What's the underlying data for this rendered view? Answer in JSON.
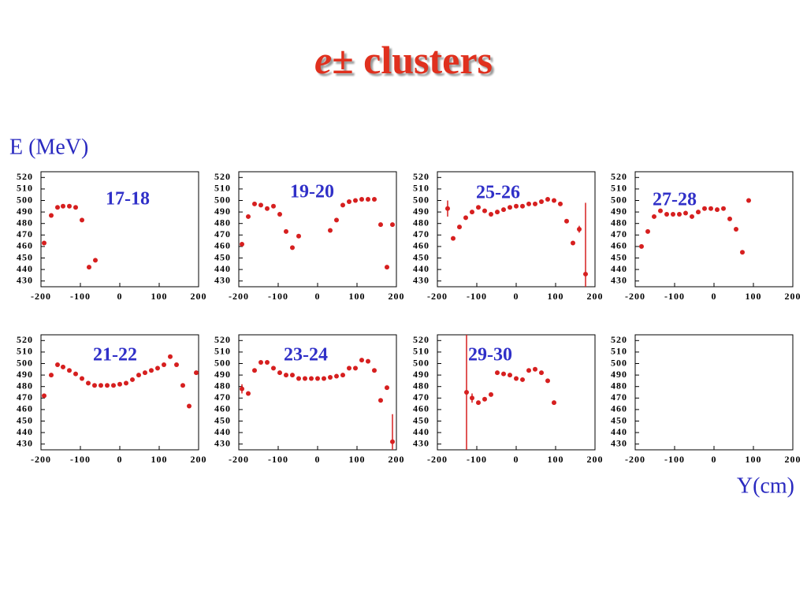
{
  "title": {
    "italic": "e",
    "rest": "± clusters"
  },
  "y_axis_label": "E (MeV)",
  "x_axis_label": "Y(cm)",
  "chart_data": [
    {
      "type": "scatter",
      "annotation": "17-18",
      "color": "#d61f1f",
      "x": [
        -192,
        -174,
        -158,
        -144,
        -128,
        -112,
        -96,
        -78,
        -62
      ],
      "values": [
        463,
        487,
        494,
        495,
        495,
        494,
        483,
        442,
        448
      ],
      "xlim": [
        -200,
        200
      ],
      "ylim": [
        425,
        525
      ],
      "xticks": [
        -200,
        -100,
        0,
        100,
        200
      ],
      "yticks": [
        430,
        440,
        450,
        460,
        470,
        480,
        490,
        500,
        510,
        520
      ]
    },
    {
      "type": "scatter",
      "annotation": "19-20",
      "color": "#d61f1f",
      "x": [
        -192,
        -176,
        -160,
        -144,
        -128,
        -112,
        -96,
        -80,
        -64,
        -48,
        32,
        48,
        64,
        80,
        96,
        112,
        128,
        144,
        160,
        176,
        190
      ],
      "values": [
        462,
        486,
        497,
        496,
        493,
        495,
        488,
        473,
        459,
        469,
        474,
        483,
        496,
        499,
        500,
        501,
        501,
        501,
        479,
        442,
        479
      ],
      "xlim": [
        -200,
        200
      ],
      "ylim": [
        425,
        525
      ],
      "xticks": [
        -200,
        -100,
        0,
        100,
        200
      ],
      "yticks": [
        430,
        440,
        450,
        460,
        470,
        480,
        490,
        500,
        510,
        520
      ]
    },
    {
      "type": "scatter",
      "annotation": "25-26",
      "color": "#d61f1f",
      "x": [
        -174,
        -160,
        -144,
        -128,
        -112,
        -96,
        -80,
        -64,
        -48,
        -32,
        -16,
        0,
        16,
        32,
        48,
        64,
        80,
        96,
        112,
        128,
        144,
        160,
        176
      ],
      "values": [
        493,
        467,
        477,
        485,
        490,
        494,
        491,
        488,
        490,
        492,
        494,
        495,
        495,
        497,
        497,
        499,
        501,
        500,
        497,
        482,
        463,
        475,
        436
      ],
      "yerr": [
        7,
        null,
        null,
        null,
        null,
        null,
        null,
        null,
        null,
        null,
        null,
        null,
        null,
        null,
        null,
        null,
        null,
        null,
        null,
        null,
        null,
        3,
        62
      ],
      "xlim": [
        -200,
        200
      ],
      "ylim": [
        425,
        525
      ],
      "xticks": [
        -200,
        -100,
        0,
        100,
        200
      ],
      "yticks": [
        430,
        440,
        450,
        460,
        470,
        480,
        490,
        500,
        510,
        520
      ]
    },
    {
      "type": "scatter",
      "annotation": "27-28",
      "color": "#d61f1f",
      "x": [
        -184,
        -168,
        -152,
        -136,
        -120,
        -104,
        -88,
        -72,
        -56,
        -40,
        -24,
        -8,
        8,
        24,
        40,
        56,
        72,
        88
      ],
      "values": [
        460,
        473,
        486,
        491,
        488,
        488,
        488,
        489,
        486,
        490,
        493,
        493,
        492,
        493,
        484,
        475,
        455,
        500
      ],
      "xlim": [
        -200,
        200
      ],
      "ylim": [
        425,
        525
      ],
      "xticks": [
        -200,
        -100,
        0,
        100,
        200
      ],
      "yticks": [
        430,
        440,
        450,
        460,
        470,
        480,
        490,
        500,
        510,
        520
      ]
    },
    {
      "type": "scatter",
      "annotation": "21-22",
      "color": "#d61f1f",
      "x": [
        -192,
        -174,
        -158,
        -144,
        -128,
        -112,
        -96,
        -80,
        -64,
        -48,
        -32,
        -16,
        0,
        16,
        32,
        48,
        64,
        80,
        96,
        112,
        128,
        144,
        160,
        176,
        194
      ],
      "values": [
        472,
        490,
        499,
        497,
        494,
        491,
        487,
        483,
        481,
        481,
        481,
        481,
        482,
        483,
        486,
        490,
        492,
        494,
        496,
        499,
        506,
        499,
        481,
        463,
        492
      ],
      "xlim": [
        -200,
        200
      ],
      "ylim": [
        425,
        525
      ],
      "xticks": [
        -200,
        -100,
        0,
        100,
        200
      ],
      "yticks": [
        430,
        440,
        450,
        460,
        470,
        480,
        490,
        500,
        510,
        520
      ]
    },
    {
      "type": "scatter",
      "annotation": "23-24",
      "color": "#d61f1f",
      "x": [
        -192,
        -176,
        -160,
        -144,
        -128,
        -112,
        -96,
        -80,
        -64,
        -48,
        -32,
        -16,
        0,
        16,
        32,
        48,
        64,
        80,
        96,
        112,
        128,
        144,
        160,
        176,
        190
      ],
      "values": [
        478,
        474,
        494,
        501,
        501,
        496,
        492,
        490,
        490,
        487,
        487,
        487,
        487,
        487,
        488,
        489,
        490,
        496,
        496,
        503,
        502,
        494,
        468,
        479,
        432
      ],
      "yerr": [
        4,
        null,
        null,
        null,
        null,
        null,
        null,
        null,
        null,
        null,
        null,
        null,
        null,
        null,
        null,
        null,
        null,
        null,
        null,
        null,
        null,
        null,
        null,
        null,
        24
      ],
      "xlim": [
        -200,
        200
      ],
      "ylim": [
        425,
        525
      ],
      "xticks": [
        -200,
        -100,
        0,
        100,
        200
      ],
      "yticks": [
        430,
        440,
        450,
        460,
        470,
        480,
        490,
        500,
        510,
        520
      ]
    },
    {
      "type": "scatter",
      "annotation": "29-30",
      "color": "#d61f1f",
      "x": [
        -126,
        -112,
        -96,
        -80,
        -64,
        -48,
        -32,
        -16,
        0,
        16,
        32,
        48,
        64,
        80,
        96
      ],
      "values": [
        475,
        470,
        466,
        469,
        473,
        492,
        491,
        490,
        487,
        486,
        494,
        495,
        492,
        485,
        466
      ],
      "yerr": [
        60,
        4,
        null,
        null,
        null,
        null,
        null,
        null,
        null,
        null,
        null,
        null,
        null,
        null,
        null
      ],
      "xlim": [
        -200,
        200
      ],
      "ylim": [
        425,
        525
      ],
      "xticks": [
        -200,
        -100,
        0,
        100,
        200
      ],
      "yticks": [
        430,
        440,
        450,
        460,
        470,
        480,
        490,
        500,
        510,
        520
      ]
    },
    {
      "type": "scatter",
      "color": "#d61f1f",
      "x": [],
      "values": [],
      "xlim": [
        -200,
        200
      ],
      "ylim": [
        425,
        525
      ],
      "xticks": [
        -200,
        -100,
        0,
        100,
        200
      ],
      "yticks": [
        430,
        440,
        450,
        460,
        470,
        480,
        490,
        500,
        510,
        520
      ]
    }
  ]
}
